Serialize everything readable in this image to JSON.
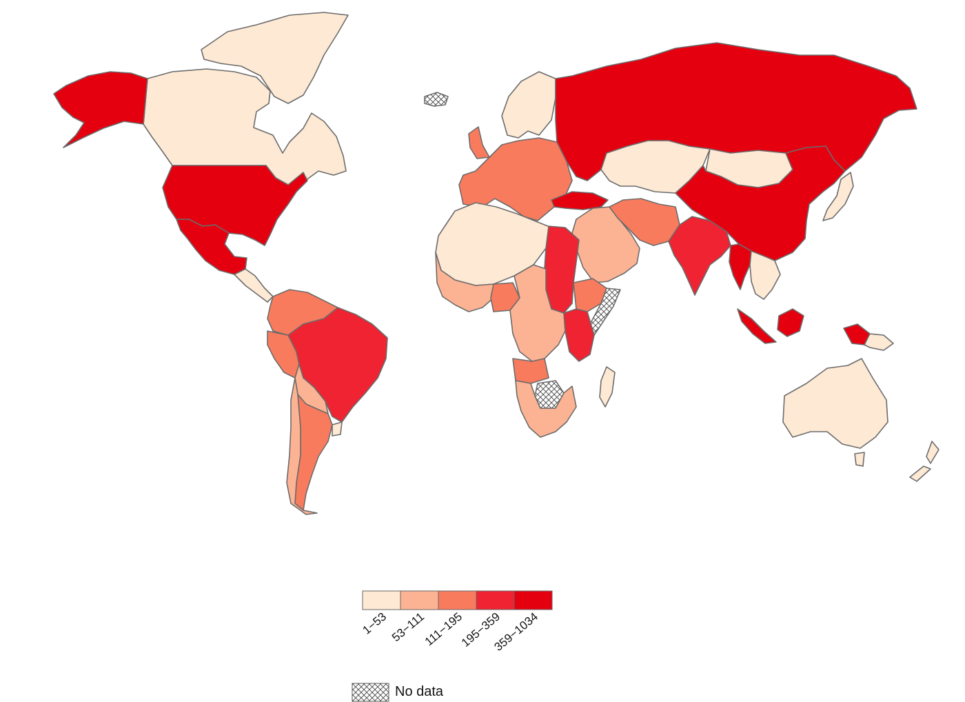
{
  "legend": {
    "bins": [
      {
        "label": "1−53",
        "color": "#fde9d4"
      },
      {
        "label": "53−111",
        "color": "#fcb393"
      },
      {
        "label": "111−195",
        "color": "#f97b5e"
      },
      {
        "label": "195−359",
        "color": "#ef2331"
      },
      {
        "label": "359−1034",
        "color": "#e50010"
      }
    ],
    "no_data_label": "No data"
  },
  "regions": [
    {
      "name": "Canada",
      "bin": 0
    },
    {
      "name": "Greenland",
      "bin": 0
    },
    {
      "name": "Alaska",
      "bin": 4
    },
    {
      "name": "United States",
      "bin": 4
    },
    {
      "name": "Mexico",
      "bin": 4
    },
    {
      "name": "Central America",
      "bin": 0
    },
    {
      "name": "Colombia / Venezuela",
      "bin": 2
    },
    {
      "name": "Brazil",
      "bin": 3
    },
    {
      "name": "Peru",
      "bin": 2
    },
    {
      "name": "Bolivia / Paraguay",
      "bin": 1
    },
    {
      "name": "Argentina",
      "bin": 2
    },
    {
      "name": "Chile",
      "bin": 1
    },
    {
      "name": "Uruguay",
      "bin": 0
    },
    {
      "name": "Western Europe",
      "bin": 2
    },
    {
      "name": "Scandinavia",
      "bin": 0
    },
    {
      "name": "Russia",
      "bin": 4
    },
    {
      "name": "Kazakhstan",
      "bin": 0
    },
    {
      "name": "Mongolia",
      "bin": 0
    },
    {
      "name": "China",
      "bin": 4
    },
    {
      "name": "India",
      "bin": 3
    },
    {
      "name": "Iran",
      "bin": 2
    },
    {
      "name": "Middle East",
      "bin": 1
    },
    {
      "name": "Turkey",
      "bin": 4
    },
    {
      "name": "North Africa",
      "bin": 0
    },
    {
      "name": "Egypt / Sudan",
      "bin": 3
    },
    {
      "name": "West Africa",
      "bin": 1
    },
    {
      "name": "Nigeria",
      "bin": 2
    },
    {
      "name": "Central Africa",
      "bin": 1
    },
    {
      "name": "Angola",
      "bin": 2
    },
    {
      "name": "East Africa",
      "bin": 2
    },
    {
      "name": "Kenya",
      "bin": 3
    },
    {
      "name": "Somalia",
      "bin": -1
    },
    {
      "name": "Zimbabwe",
      "bin": -1
    },
    {
      "name": "Southern Africa",
      "bin": 1
    },
    {
      "name": "Madagascar",
      "bin": 0
    },
    {
      "name": "Southeast Asia",
      "bin": 0
    },
    {
      "name": "Myanmar",
      "bin": 4
    },
    {
      "name": "Indonesia",
      "bin": 4
    },
    {
      "name": "Japan",
      "bin": 0
    },
    {
      "name": "Australia",
      "bin": 0
    },
    {
      "name": "New Zealand",
      "bin": 0
    },
    {
      "name": "Iceland",
      "bin": -1
    }
  ]
}
